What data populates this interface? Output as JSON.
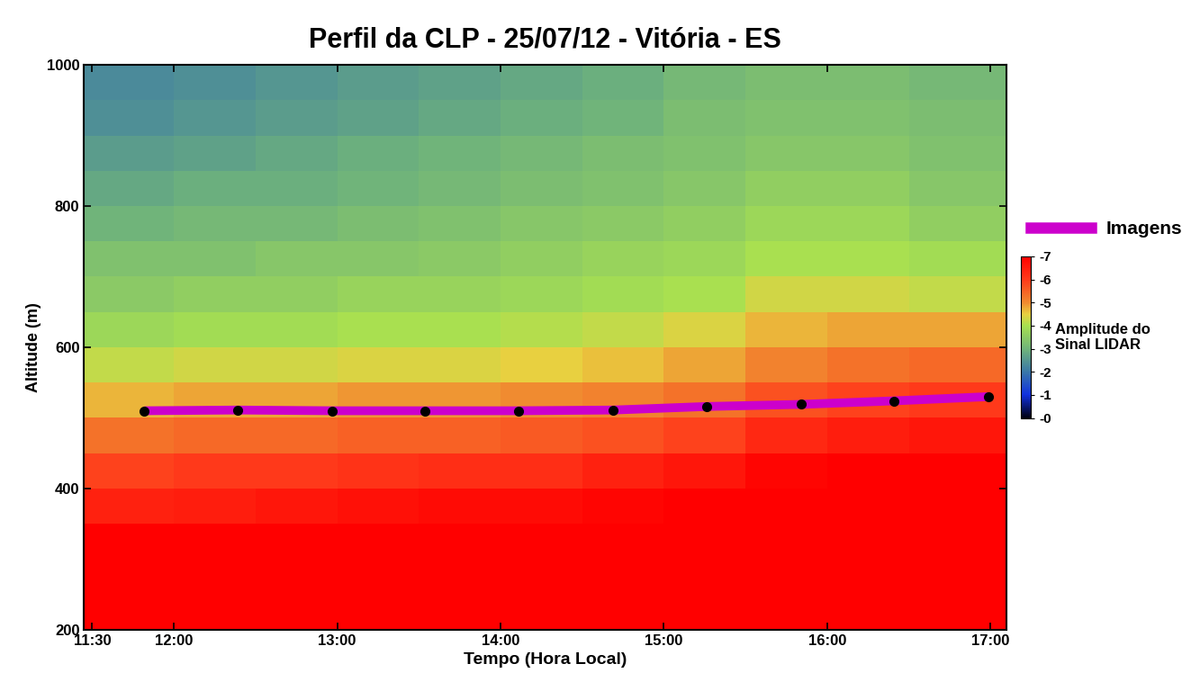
{
  "chart_data": {
    "type": "heatmap",
    "title": "Perfil da CLP - 25/07/12 - Vitória - ES",
    "x_label": "Tempo (Hora Local)",
    "y_label": "Altitude (m)",
    "xlim": [
      11.45,
      17.1
    ],
    "xticks": [
      {
        "value": 11.5,
        "label": "11:30"
      },
      {
        "value": 12.0,
        "label": "12:00"
      },
      {
        "value": 13.0,
        "label": "13:00"
      },
      {
        "value": 14.0,
        "label": "14:00"
      },
      {
        "value": 15.0,
        "label": "15:00"
      },
      {
        "value": 16.0,
        "label": "16:00"
      },
      {
        "value": 17.0,
        "label": "17:00"
      }
    ],
    "ylim": [
      200,
      1000
    ],
    "yticks": [
      200,
      400,
      600,
      800,
      1000
    ],
    "time_edges": [
      11.45,
      12.0,
      12.5,
      13.0,
      13.5,
      14.0,
      14.5,
      15.0,
      15.5,
      16.0,
      16.5,
      17.1
    ],
    "altitude_edges": [
      200,
      250,
      300,
      350,
      400,
      450,
      500,
      550,
      600,
      650,
      700,
      750,
      800,
      850,
      900,
      950,
      1000
    ],
    "cells": [
      [
        -7,
        -7,
        -7,
        -7,
        -7,
        -7,
        -7,
        -7,
        -7,
        -7,
        -7
      ],
      [
        -7,
        -7,
        -7,
        -7,
        -7,
        -7,
        -7,
        -7,
        -7,
        -7,
        -7
      ],
      [
        -7,
        -7,
        -7,
        -7,
        -7,
        -7,
        -7,
        -7,
        -7,
        -7,
        -7
      ],
      [
        -6.4,
        -6.5,
        -6.6,
        -6.7,
        -6.8,
        -6.8,
        -6.9,
        -7,
        -7,
        -7,
        -7
      ],
      [
        -5.9,
        -6.0,
        -6.0,
        -6.1,
        -6.2,
        -6.2,
        -6.4,
        -6.6,
        -6.9,
        -7,
        -7
      ],
      [
        -5.3,
        -5.4,
        -5.4,
        -5.5,
        -5.5,
        -5.6,
        -5.7,
        -5.9,
        -6.3,
        -6.5,
        -6.6
      ],
      [
        -4.7,
        -4.8,
        -4.8,
        -4.9,
        -4.9,
        -5.0,
        -5.1,
        -5.3,
        -5.7,
        -5.9,
        -6.0
      ],
      [
        -4.2,
        -4.3,
        -4.3,
        -4.4,
        -4.4,
        -4.5,
        -4.6,
        -4.8,
        -5.1,
        -5.3,
        -5.4
      ],
      [
        -3.8,
        -3.9,
        -3.9,
        -4.0,
        -4.0,
        -4.1,
        -4.2,
        -4.4,
        -4.7,
        -4.8,
        -4.8
      ],
      [
        -3.5,
        -3.6,
        -3.6,
        -3.7,
        -3.7,
        -3.8,
        -3.9,
        -4.0,
        -4.3,
        -4.3,
        -4.2
      ],
      [
        -3.3,
        -3.3,
        -3.4,
        -3.4,
        -3.5,
        -3.6,
        -3.7,
        -3.8,
        -4.0,
        -4.0,
        -3.9
      ],
      [
        -3.0,
        -3.1,
        -3.1,
        -3.2,
        -3.3,
        -3.4,
        -3.5,
        -3.6,
        -3.8,
        -3.8,
        -3.6
      ],
      [
        -2.8,
        -2.9,
        -2.9,
        -3.0,
        -3.1,
        -3.2,
        -3.3,
        -3.4,
        -3.6,
        -3.6,
        -3.4
      ],
      [
        -2.6,
        -2.7,
        -2.8,
        -2.9,
        -3.0,
        -3.1,
        -3.2,
        -3.3,
        -3.4,
        -3.4,
        -3.3
      ],
      [
        -2.4,
        -2.5,
        -2.6,
        -2.7,
        -2.8,
        -2.9,
        -3.0,
        -3.2,
        -3.3,
        -3.3,
        -3.2
      ],
      [
        -2.3,
        -2.4,
        -2.5,
        -2.6,
        -2.7,
        -2.8,
        -2.9,
        -3.1,
        -3.2,
        -3.2,
        -3.1
      ]
    ],
    "colorbar_label": "Amplitude do\nSinal LIDAR",
    "colorbar_range": [
      0,
      -7
    ],
    "colorbar_ticks": [
      {
        "value": -7,
        "label": "-7"
      },
      {
        "value": -6,
        "label": "-6"
      },
      {
        "value": -5,
        "label": "-5"
      },
      {
        "value": -4,
        "label": "-4"
      },
      {
        "value": -3,
        "label": "-3"
      },
      {
        "value": -2,
        "label": "-2"
      },
      {
        "value": -1,
        "label": "-1"
      },
      {
        "value": 0,
        "label": "-0"
      }
    ],
    "series": [
      {
        "name": "Imagens",
        "type": "line",
        "color": "#cc00cc",
        "marker": "o",
        "line_style": "solid",
        "x": [
          11.82,
          12.39,
          12.97,
          13.54,
          14.11,
          14.69,
          15.26,
          15.84,
          16.41,
          16.99
        ],
        "values": [
          510,
          511,
          510,
          510,
          510,
          511,
          516,
          519,
          524,
          530
        ]
      }
    ],
    "legend": "right"
  }
}
